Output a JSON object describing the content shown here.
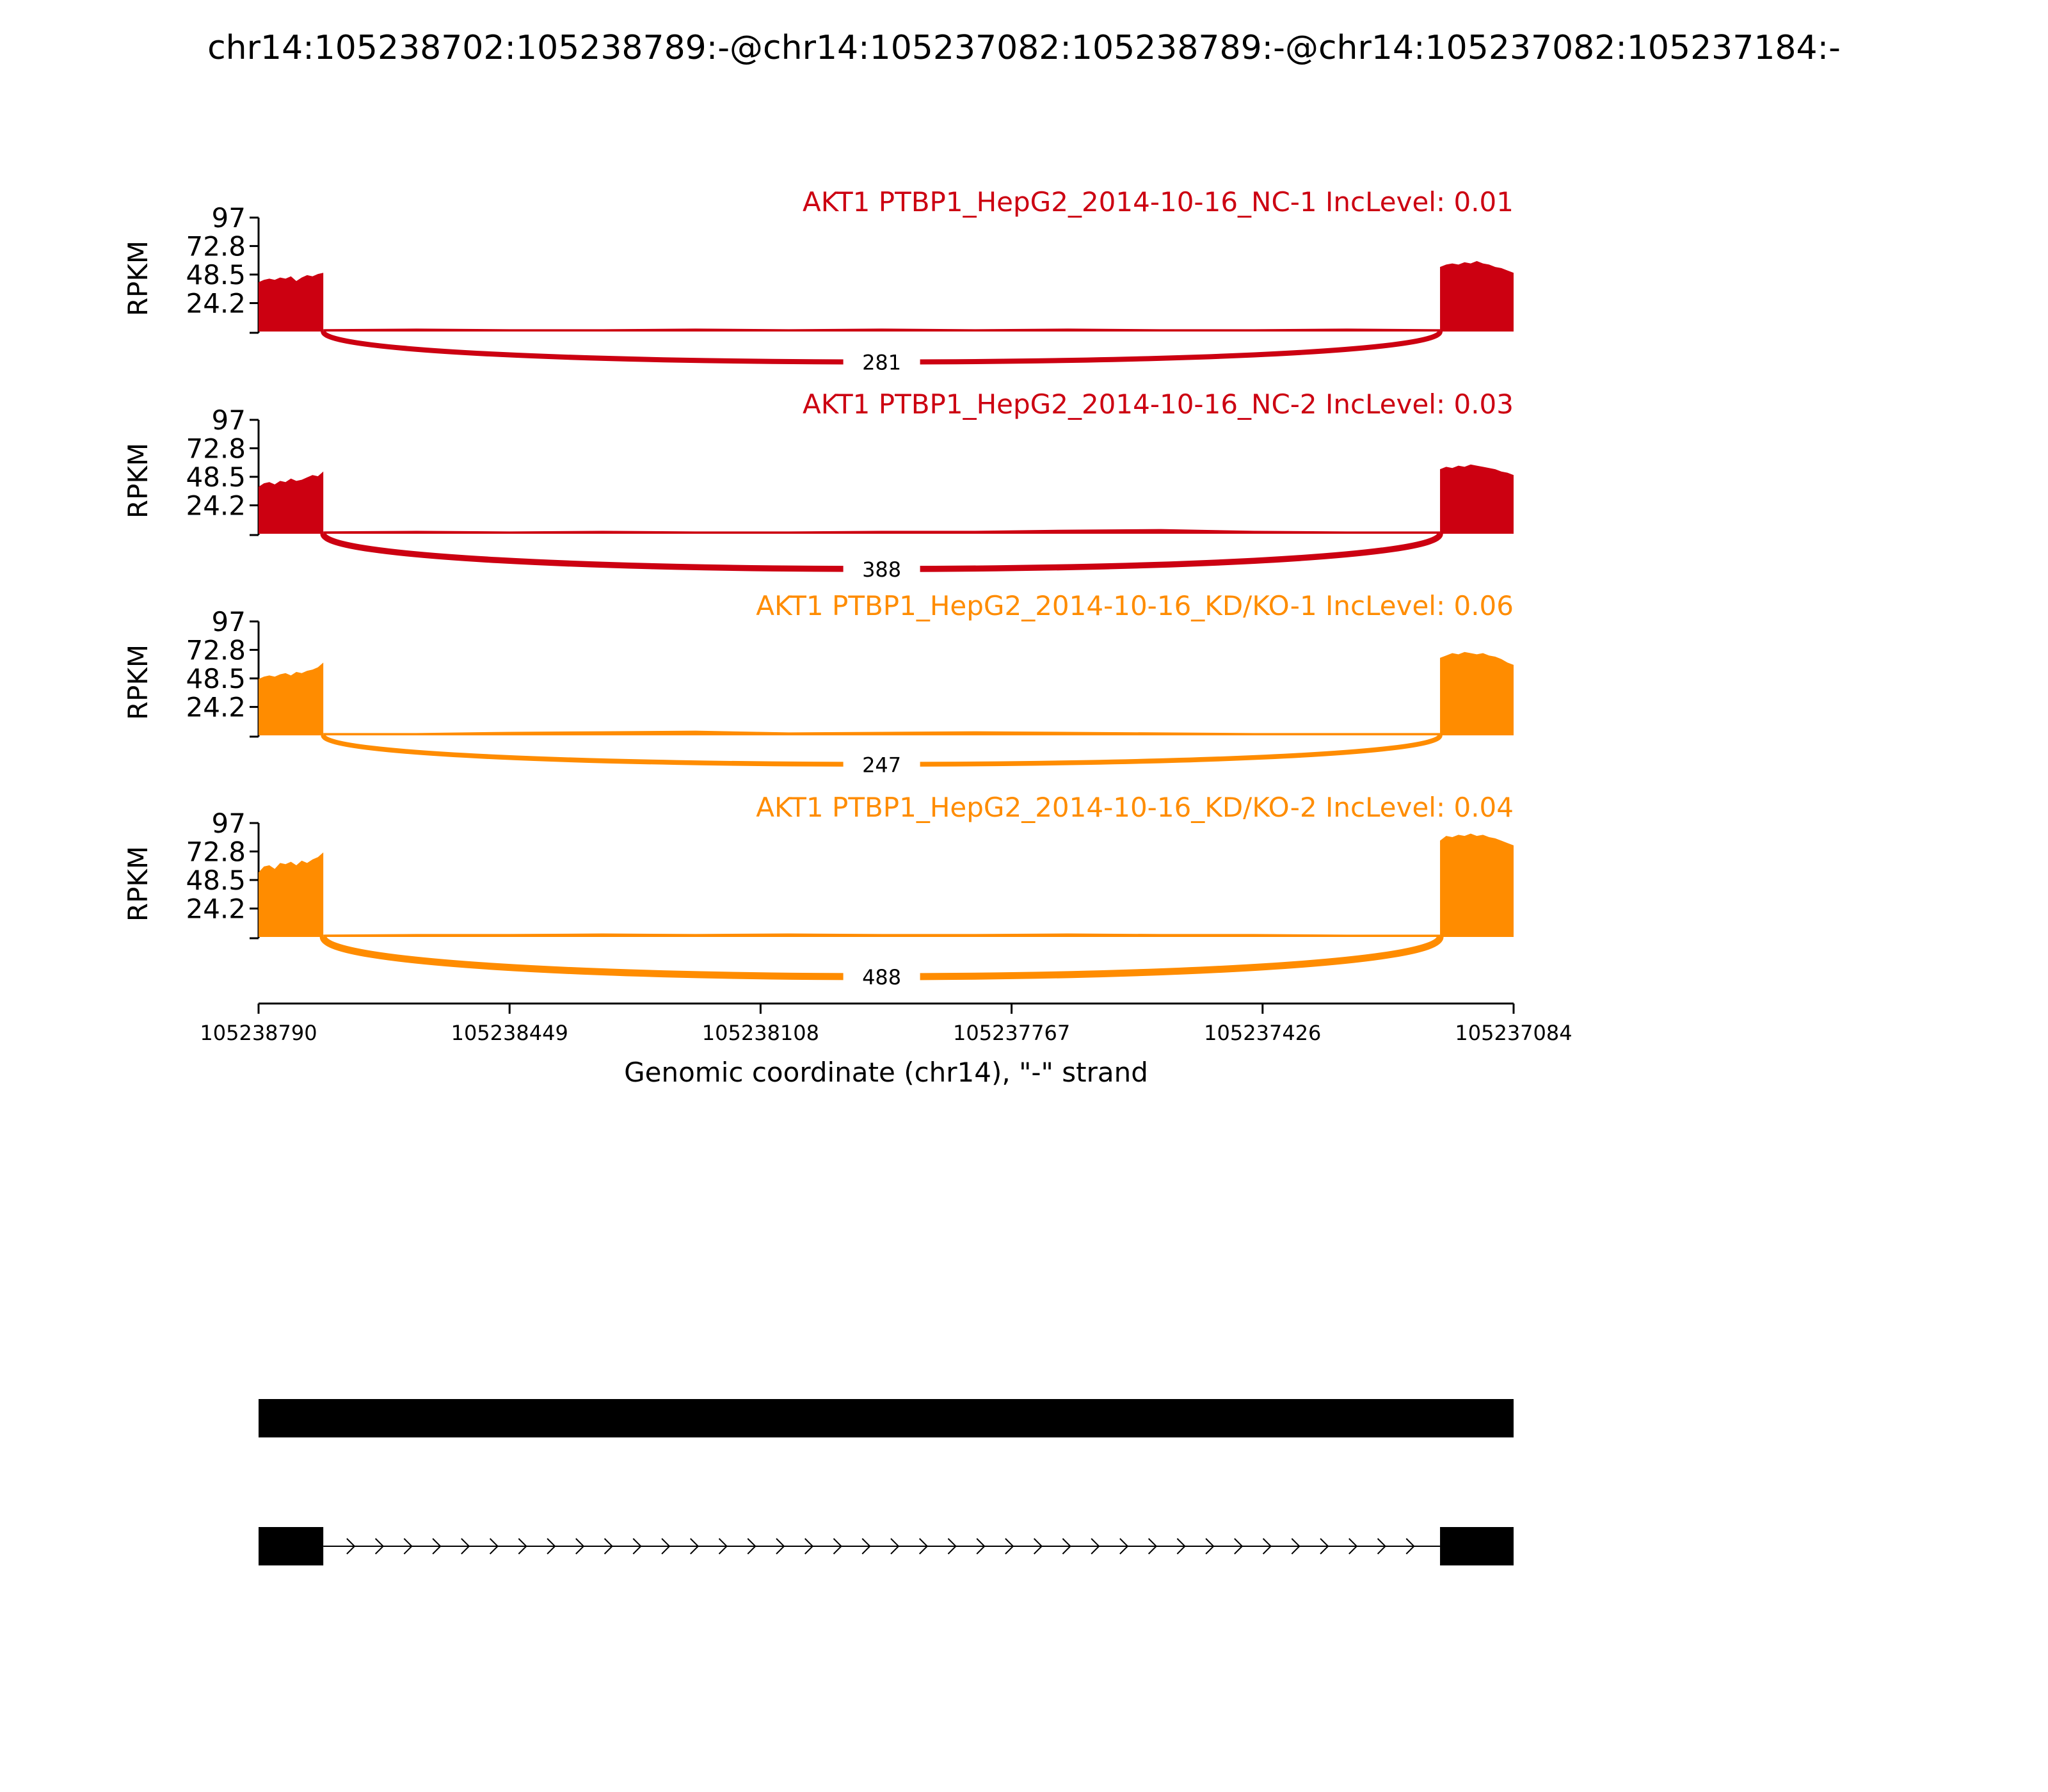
{
  "title": "chr14:105238702:105238789:-@chr14:105237082:105238789:-@chr14:105237082:105237184:-",
  "chart_data": {
    "type": "area",
    "y_axis_label": "RPKM",
    "y_ticks": [
      "97",
      "72.8",
      "48.5",
      "24.2"
    ],
    "ylim": [
      0,
      97
    ],
    "x_ticks": [
      "105238790",
      "105238449",
      "105238108",
      "105237767",
      "105237426",
      "105237084"
    ],
    "xlim": [
      105238790,
      105237084
    ],
    "xlabel": "Genomic coordinate (chr14), \"-\" strand",
    "exons": [
      {
        "start": 105238790,
        "end": 105238702
      },
      {
        "start": 105237184,
        "end": 105237084
      }
    ],
    "series": [
      {
        "label": "AKT1 PTBP1_HepG2_2014-10-16_NC-1 IncLevel: 0.01",
        "color": "#cc0011",
        "junction_count": "281",
        "exon1_profile": [
          42,
          44,
          45,
          44,
          46,
          45,
          47,
          43,
          46,
          48,
          47,
          49,
          50
        ],
        "intron_profile": [
          2,
          2.5,
          2,
          2,
          2.5,
          2,
          2.5,
          2,
          2.5,
          2,
          2,
          2.5,
          2
        ],
        "exon2_profile": [
          55,
          57,
          58,
          57,
          59,
          58,
          60,
          58,
          57,
          55,
          54,
          52,
          50
        ]
      },
      {
        "label": "AKT1 PTBP1_HepG2_2014-10-16_NC-2 IncLevel: 0.03",
        "color": "#cc0011",
        "junction_count": "388",
        "exon1_profile": [
          40,
          43,
          44,
          42,
          45,
          44,
          47,
          45,
          46,
          48,
          50,
          49,
          53
        ],
        "intron_profile": [
          2,
          2.5,
          2,
          2.5,
          2,
          2,
          2.5,
          2.5,
          3.5,
          4,
          2.5,
          2,
          2
        ],
        "exon2_profile": [
          55,
          57,
          56,
          58,
          57,
          59,
          58,
          57,
          56,
          55,
          53,
          52,
          50
        ]
      },
      {
        "label": "AKT1 PTBP1_HepG2_2014-10-16_KD/KO-1 IncLevel: 0.06",
        "color": "#ff8c00",
        "junction_count": "247",
        "exon1_profile": [
          48,
          50,
          51,
          50,
          52,
          53,
          51,
          54,
          53,
          55,
          56,
          58,
          62
        ],
        "intron_profile": [
          2,
          2,
          3,
          3.5,
          4,
          2.5,
          3,
          3.5,
          3,
          2.5,
          2,
          2,
          2
        ],
        "exon2_profile": [
          66,
          68,
          70,
          69,
          71,
          70,
          69,
          70,
          68,
          67,
          65,
          62,
          60
        ]
      },
      {
        "label": "AKT1 PTBP1_HepG2_2014-10-16_KD/KO-2 IncLevel: 0.04",
        "color": "#ff8c00",
        "junction_count": "488",
        "exon1_profile": [
          55,
          60,
          61,
          58,
          63,
          62,
          64,
          61,
          65,
          63,
          66,
          68,
          72
        ],
        "intron_profile": [
          2,
          2.5,
          2.5,
          3,
          2.5,
          3,
          2.5,
          2.5,
          3,
          2.5,
          2.5,
          2,
          2
        ],
        "exon2_profile": [
          82,
          86,
          85,
          87,
          86,
          88,
          86,
          87,
          85,
          84,
          82,
          80,
          78
        ]
      }
    ]
  }
}
